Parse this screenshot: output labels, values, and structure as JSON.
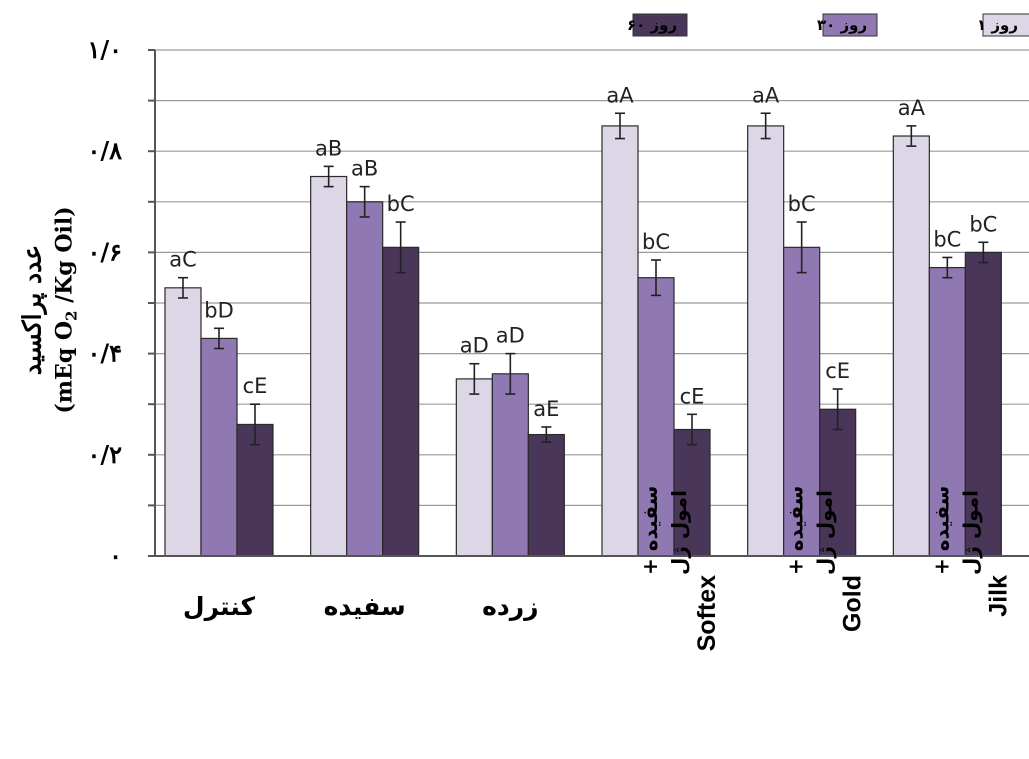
{
  "chart_data": {
    "type": "bar",
    "categories": [
      {
        "text": "کنترل",
        "parts": [
          "کنترل"
        ]
      },
      {
        "text": "سفیده",
        "parts": [
          "سفیده"
        ]
      },
      {
        "text": "زرده",
        "parts": [
          "زرده"
        ]
      },
      {
        "text": "سفیده + امول ژل Softex",
        "parts": [
          "سفیده +",
          "امول ژل",
          "Softex"
        ]
      },
      {
        "text": "سفیده + امول ژل Gold",
        "parts": [
          "سفیده +",
          "امول ژل",
          "Gold"
        ]
      },
      {
        "text": "سفیده + امول ژل Jilk",
        "parts": [
          "سفیده +",
          "امول ژل",
          "Jilk"
        ]
      }
    ],
    "series": [
      {
        "name": "روز ۱",
        "color": "#dcd6e6",
        "values": [
          0.53,
          0.75,
          0.35,
          0.85,
          0.85,
          0.83
        ],
        "errors": [
          0.02,
          0.02,
          0.03,
          0.025,
          0.025,
          0.02
        ],
        "letters": [
          "aC",
          "aB",
          "aD",
          "aA",
          "aA",
          "aA"
        ]
      },
      {
        "name": "روز ۳۰",
        "color": "#9079b3",
        "values": [
          0.43,
          0.7,
          0.36,
          0.55,
          0.61,
          0.57
        ],
        "errors": [
          0.02,
          0.03,
          0.04,
          0.035,
          0.05,
          0.02
        ],
        "letters": [
          "bD",
          "aB",
          "aD",
          "bC",
          "bC",
          "bC"
        ]
      },
      {
        "name": "روز ۶۰",
        "color": "#4a3658",
        "values": [
          0.26,
          0.61,
          0.24,
          0.25,
          0.29,
          0.6
        ],
        "errors": [
          0.04,
          0.05,
          0.015,
          0.03,
          0.04,
          0.02
        ],
        "letters": [
          "cE",
          "bC",
          "aE",
          "cE",
          "cE",
          "bC"
        ]
      }
    ],
    "ylim": [
      0,
      1.0
    ],
    "yticks": [
      0,
      0.2,
      0.4,
      0.6,
      0.8,
      1.0
    ],
    "ytick_labels": [
      "۰",
      "۰/۲",
      "۰/۴",
      "۰/۶",
      "۰/۸",
      "۱/۰"
    ],
    "ylabel": "عدد پراکسید",
    "ylabel_unit": {
      "prefix": "(mEq O",
      "sub": "2",
      "suffix": " /Kg Oil)"
    },
    "legend_position": "top",
    "grid": true
  }
}
